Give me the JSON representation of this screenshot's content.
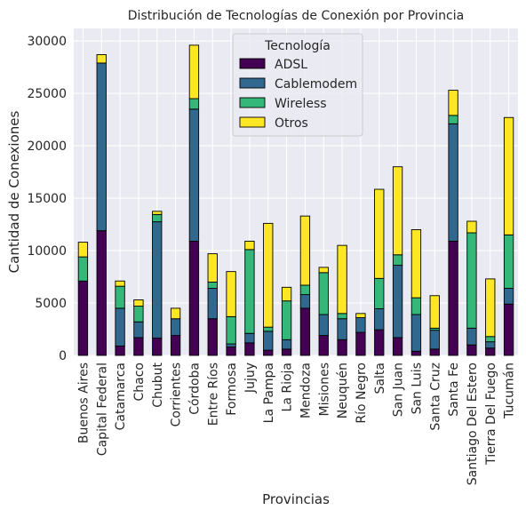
{
  "chart_data": {
    "type": "bar",
    "stacked": true,
    "title": "Distribución de Tecnologías de Conexión por Provincia",
    "xlabel": "Provincias",
    "ylabel": "Cantidad de Conexiones",
    "ylim": [
      0,
      31200
    ],
    "yticks": [
      0,
      5000,
      10000,
      15000,
      20000,
      25000,
      30000
    ],
    "ytick_labels": [
      "0",
      "5000",
      "10000",
      "15000",
      "20000",
      "25000",
      "30000"
    ],
    "grid": true,
    "legend_title": "Tecnología",
    "legend_position": "top-center",
    "categories": [
      "Buenos Aires",
      "Capital Federal",
      "Catamarca",
      "Chaco",
      "Chubut",
      "Corrientes",
      "Córdoba",
      "Entre Ríos",
      "Formosa",
      "Jujuy",
      "La Pampa",
      "La Rioja",
      "Mendoza",
      "Misiones",
      "Neuquén",
      "Río Negro",
      "Salta",
      "San Juan",
      "San Luis",
      "Santa Cruz",
      "Santa Fe",
      "Santiago Del Estero",
      "Tierra Del Fuego",
      "Tucumán"
    ],
    "series": [
      {
        "name": "ADSL",
        "color": "#440154",
        "values": [
          7100,
          11900,
          900,
          1700,
          1650,
          1900,
          10900,
          3500,
          800,
          1200,
          500,
          600,
          4500,
          1900,
          1500,
          2200,
          2450,
          1700,
          400,
          600,
          10900,
          1000,
          700,
          4900
        ]
      },
      {
        "name": "Cablemodem",
        "color": "#31688e",
        "values": [
          0,
          16000,
          3600,
          1500,
          11100,
          1600,
          12600,
          2900,
          300,
          900,
          1800,
          900,
          1300,
          2000,
          2000,
          1400,
          2000,
          6900,
          3500,
          1800,
          11200,
          1600,
          600,
          1500
        ]
      },
      {
        "name": "Wireless",
        "color": "#35b779",
        "values": [
          2300,
          0,
          2100,
          1500,
          700,
          0,
          1000,
          600,
          2600,
          8000,
          400,
          3700,
          900,
          4000,
          500,
          0,
          2900,
          1000,
          1600,
          200,
          800,
          9100,
          500,
          5100
        ]
      },
      {
        "name": "Otros",
        "color": "#fde725",
        "values": [
          1400,
          800,
          500,
          600,
          300,
          1000,
          5100,
          2700,
          4300,
          800,
          9900,
          1300,
          6600,
          500,
          6500,
          400,
          8500,
          8400,
          6500,
          3100,
          2400,
          1100,
          5500,
          11200
        ]
      }
    ]
  }
}
